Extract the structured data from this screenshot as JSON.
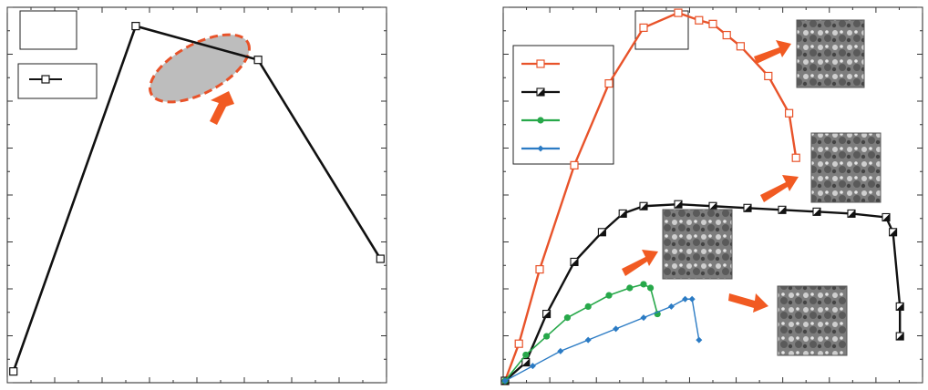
{
  "chart_data": [
    {
      "type": "line",
      "title": "",
      "xlabel": "",
      "ylabel": "",
      "x": [
        0,
        1,
        2,
        3
      ],
      "xlim": [
        -0.05,
        3.05
      ],
      "ylim": [
        0,
        1
      ],
      "grid": false,
      "legend_position": "top-left",
      "series": [
        {
          "name": "",
          "color": "#111111",
          "marker": "square-open",
          "values": [
            0.03,
            0.95,
            0.86,
            0.33
          ]
        }
      ],
      "annotations": [
        {
          "kind": "dashed-ellipse",
          "color": "#e8532a",
          "fill": "#bdbdbd",
          "around_point": 1
        },
        {
          "kind": "arrow",
          "color": "#f15a22",
          "points_to": "ellipse"
        }
      ]
    },
    {
      "type": "line",
      "title": "",
      "xlabel": "",
      "ylabel": "",
      "xlim": [
        0,
        60
      ],
      "ylim": [
        0,
        100
      ],
      "grid": false,
      "legend_position": "top-left",
      "series": [
        {
          "name": "",
          "color": "#e8532a",
          "marker": "square-open",
          "x": [
            0,
            2,
            5,
            10,
            15,
            20,
            25,
            28,
            30,
            32,
            34,
            38,
            41,
            42
          ],
          "y": [
            0,
            10,
            30,
            58,
            80,
            95,
            99,
            97,
            96,
            93,
            90,
            82,
            72,
            60
          ]
        },
        {
          "name": "",
          "color": "#111111",
          "marker": "half-square",
          "x": [
            0,
            3,
            6,
            10,
            14,
            17,
            20,
            25,
            30,
            35,
            40,
            45,
            50,
            55,
            56,
            57,
            57
          ],
          "y": [
            0,
            5,
            18,
            32,
            40,
            45,
            47,
            47.5,
            47,
            46.5,
            46,
            45.5,
            45,
            44,
            40,
            20,
            12
          ]
        },
        {
          "name": "",
          "color": "#27a84a",
          "marker": "circle",
          "x": [
            0,
            3,
            6,
            9,
            12,
            15,
            18,
            20,
            21,
            22
          ],
          "y": [
            0,
            7,
            12,
            17,
            20,
            23,
            25,
            26,
            25,
            18
          ]
        },
        {
          "name": "",
          "color": "#2b7bc4",
          "marker": "diamond",
          "x": [
            0,
            4,
            8,
            12,
            16,
            20,
            24,
            26,
            27,
            28
          ],
          "y": [
            0,
            4,
            8,
            11,
            14,
            17,
            20,
            22,
            22,
            11
          ]
        }
      ],
      "annotations": [
        {
          "kind": "sem-micrograph-inset",
          "series": 0
        },
        {
          "kind": "sem-micrograph-inset",
          "series": 1
        },
        {
          "kind": "sem-micrograph-inset",
          "series": 2
        },
        {
          "kind": "sem-micrograph-inset",
          "series": 3
        },
        {
          "kind": "arrow",
          "color": "#f15a22",
          "count": 4
        }
      ]
    }
  ]
}
